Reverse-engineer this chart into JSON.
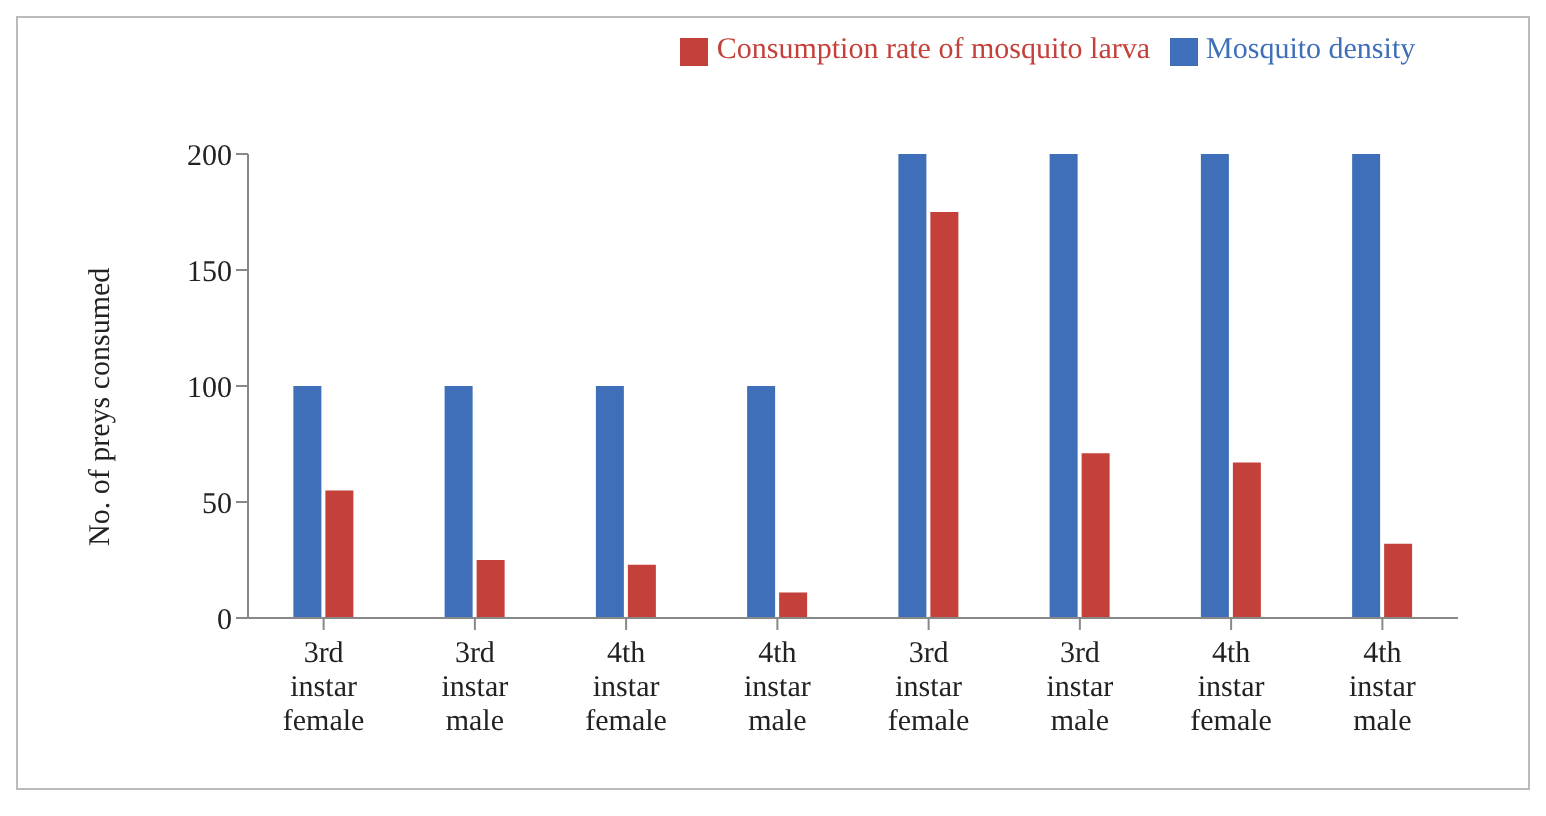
{
  "chart_data": {
    "type": "bar",
    "ylabel": "No. of preys consumed",
    "categories": [
      "3rd instar female",
      "3rd instar male",
      "4th instar female",
      "4th instar male",
      "3rd instar female",
      "3rd instar male",
      "4th instar female",
      "4th instar male"
    ],
    "series": [
      {
        "name": "Mosquito density",
        "color": "#3e6fb8",
        "values": [
          100,
          100,
          100,
          100,
          200,
          200,
          200,
          200
        ]
      },
      {
        "name": "Consumption rate of mosquito larva",
        "color": "#c4403a",
        "values": [
          55,
          25,
          23,
          11,
          175,
          71,
          67,
          32
        ]
      }
    ],
    "ylim": [
      0,
      200
    ],
    "yticks": [
      0,
      50,
      100,
      150,
      200
    ],
    "grid": false,
    "legend": "top"
  }
}
